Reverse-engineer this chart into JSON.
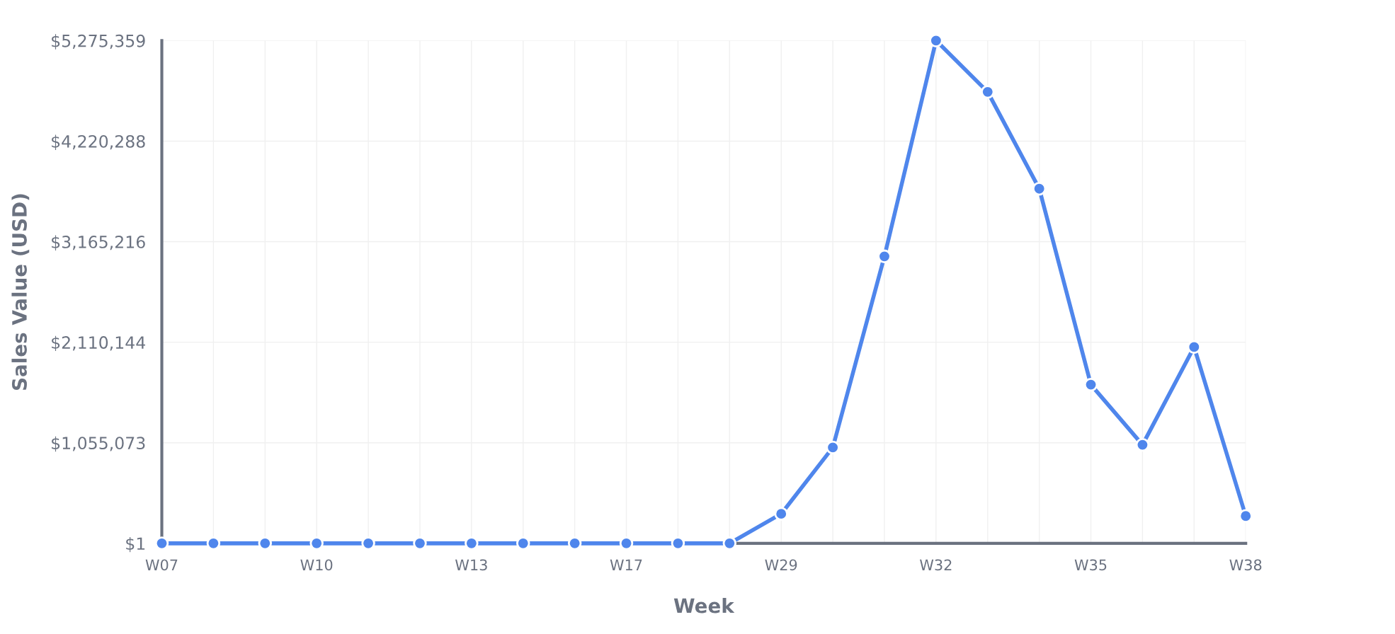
{
  "chart_data": {
    "type": "line",
    "xlabel": "Week",
    "ylabel": "Sales Value (USD)",
    "categories": [
      "W07",
      null,
      null,
      "W10",
      null,
      null,
      "W13",
      null,
      null,
      "W17",
      null,
      null,
      "W29",
      null,
      null,
      "W32",
      null,
      null,
      "W35",
      null,
      null,
      "W38"
    ],
    "series": [
      {
        "color": "#4f86ec",
        "values": [
          1,
          1,
          1,
          1,
          1,
          1,
          1,
          1,
          1,
          1,
          1,
          1,
          309600,
          1006000,
          3011000,
          5275359,
          4737000,
          3721000,
          1665000,
          1034000,
          2060000,
          287000
        ]
      }
    ],
    "ylim": [
      1,
      5275359
    ],
    "yticks": [
      {
        "value": 1,
        "label": "$1"
      },
      {
        "value": 1055073,
        "label": "$1,055,073"
      },
      {
        "value": 2110144,
        "label": "$2,110,144"
      },
      {
        "value": 3165216,
        "label": "$3,165,216"
      },
      {
        "value": 4220288,
        "label": "$4,220,288"
      },
      {
        "value": 5275359,
        "label": "$5,275,359"
      }
    ],
    "grid": true,
    "marker": "circle",
    "line_style": "solid"
  }
}
